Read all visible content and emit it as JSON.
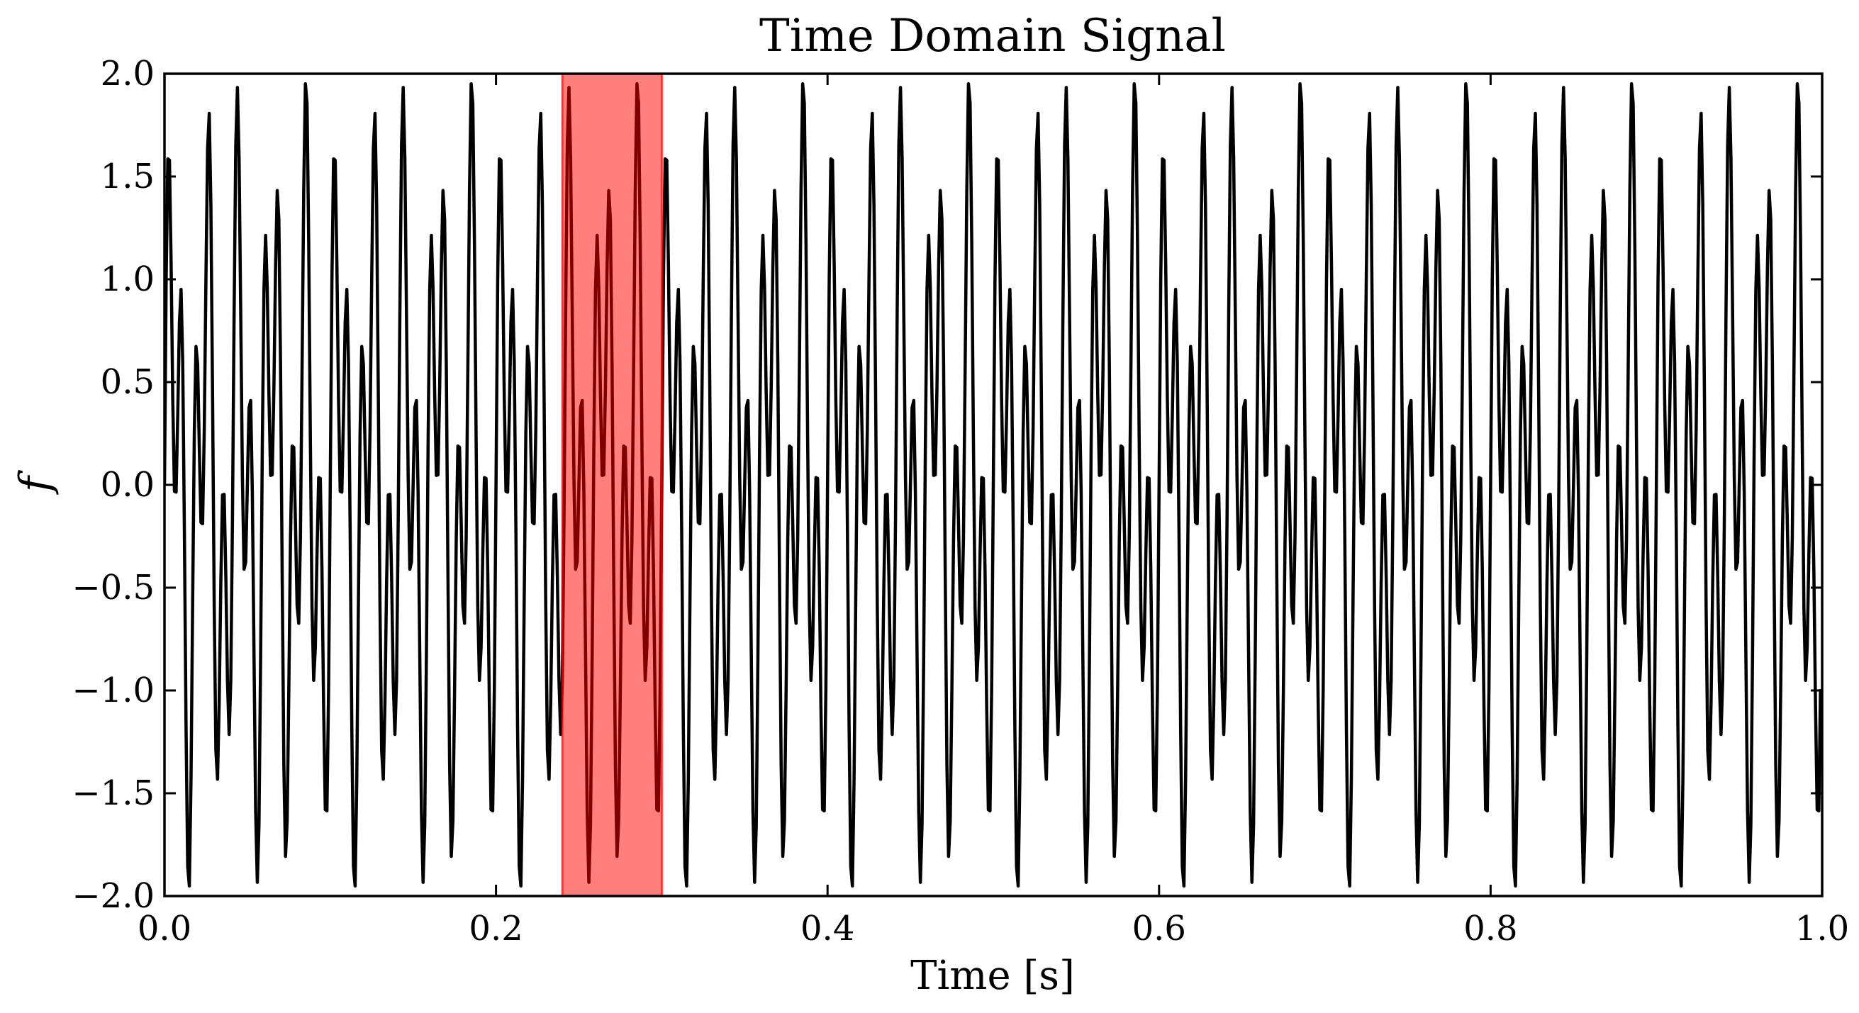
{
  "chart_data": {
    "type": "line",
    "title": "Time Domain Signal",
    "xlabel": "Time [s]",
    "ylabel": "f",
    "xlim": [
      0.0,
      1.0
    ],
    "ylim": [
      -2.0,
      2.0
    ],
    "x_ticks": [
      "0.0",
      "0.2",
      "0.4",
      "0.6",
      "0.8",
      "1.0"
    ],
    "x_tick_values": [
      0.0,
      0.2,
      0.4,
      0.6,
      0.8,
      1.0
    ],
    "y_ticks": [
      "2.0",
      "1.5",
      "1.0",
      "0.5",
      "0.0",
      "−0.5",
      "−1.0",
      "−1.5",
      "−2.0"
    ],
    "y_tick_values": [
      2.0,
      1.5,
      1.0,
      0.5,
      0.0,
      -0.5,
      -1.0,
      -1.5,
      -2.0
    ],
    "grid": false,
    "series": [
      {
        "color": "#000000",
        "signal": {
          "form": "sum_of_sines",
          "components": [
            {
              "amplitude": 1.0,
              "frequency_hz": 50
            },
            {
              "amplitude": 1.0,
              "frequency_hz": 120
            }
          ],
          "samples": 1000
        }
      }
    ],
    "highlight_span": {
      "x_start": 0.24,
      "x_end": 0.3,
      "color": "#ff0000",
      "opacity": 0.5
    }
  }
}
